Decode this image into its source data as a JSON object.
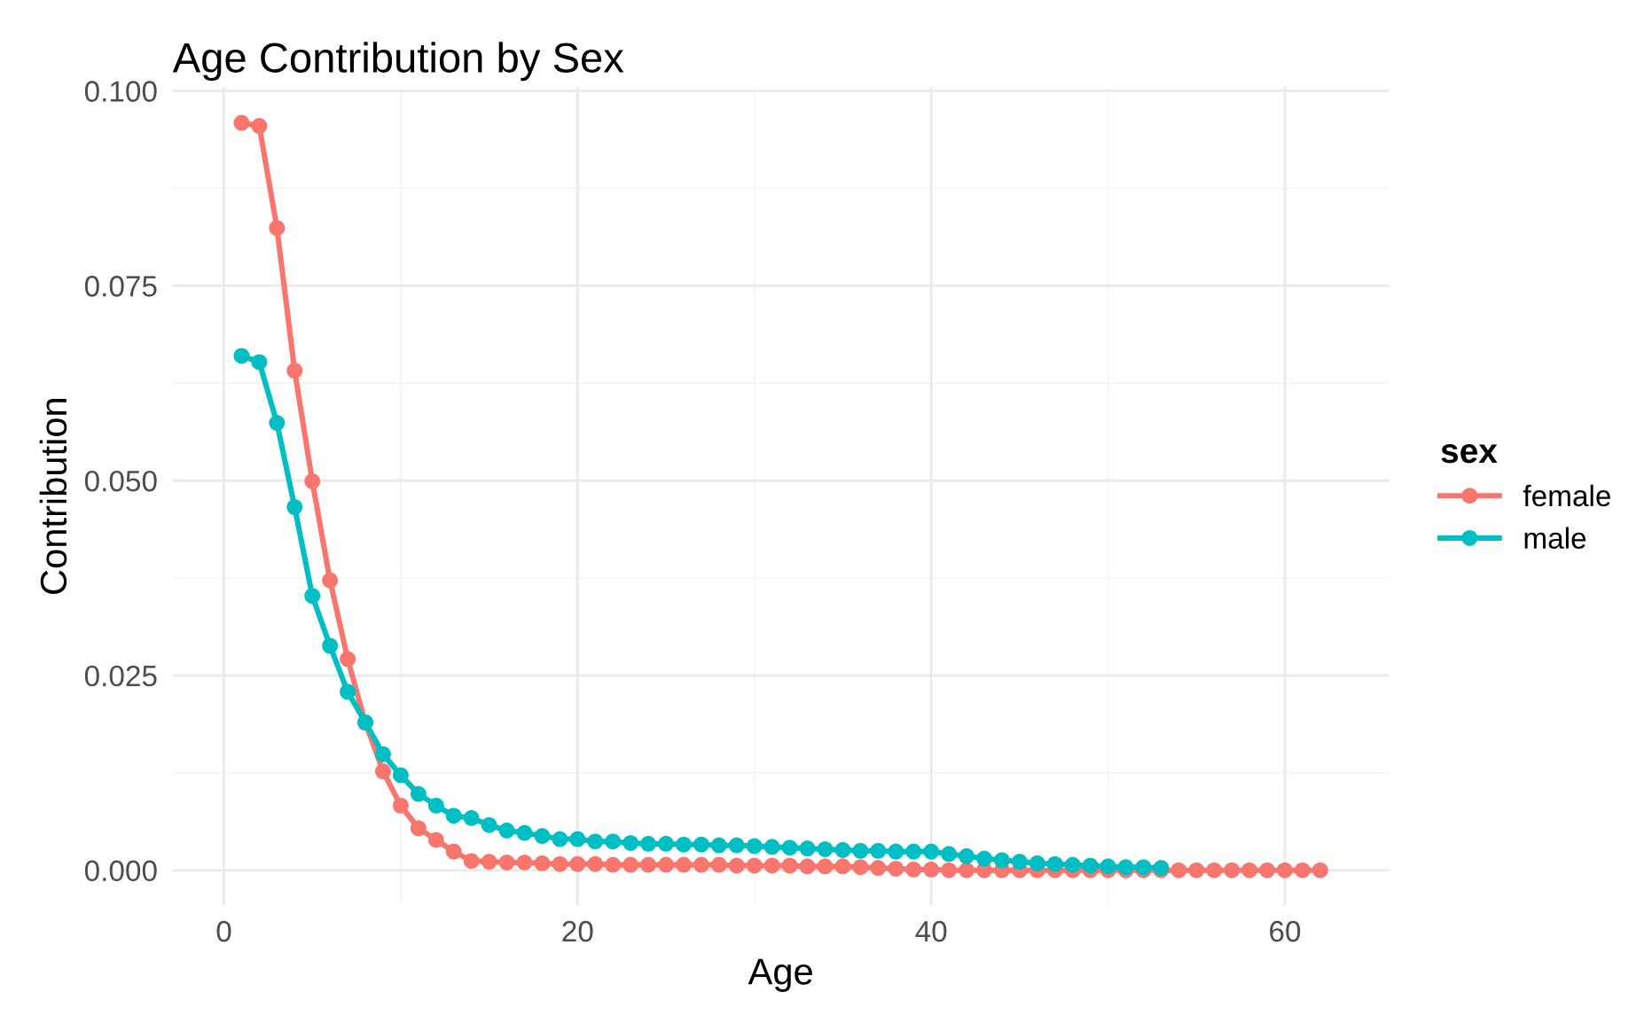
{
  "chart_data": {
    "type": "line",
    "title": "Age Contribution by Sex",
    "xlabel": "Age",
    "ylabel": "Contribution",
    "legend_title": "sex",
    "legend": "right",
    "grid": true,
    "marker": "circle",
    "line_style": "solid",
    "xlim": [
      -2.9,
      65.9
    ],
    "xticks": [
      0,
      20,
      40,
      60
    ],
    "ylim": [
      -0.0045,
      0.1005
    ],
    "yticks": [
      {
        "value": 0,
        "label": "0.000"
      },
      {
        "value": 0.025,
        "label": "0.025"
      },
      {
        "value": 0.05,
        "label": "0.050"
      },
      {
        "value": 0.075,
        "label": "0.075"
      },
      {
        "value": 0.1,
        "label": "0.100"
      }
    ],
    "series": [
      {
        "name": "female",
        "color": "#f8766d",
        "x": [
          1,
          2,
          3,
          4,
          5,
          6,
          7,
          8,
          9,
          10,
          11,
          12,
          13,
          14,
          15,
          16,
          17,
          18,
          19,
          20,
          21,
          22,
          23,
          24,
          25,
          26,
          27,
          28,
          29,
          30,
          31,
          32,
          33,
          34,
          35,
          36,
          37,
          38,
          39,
          40,
          41,
          42,
          43,
          44,
          45,
          46,
          47,
          48,
          49,
          50,
          51,
          52,
          53,
          54,
          55,
          56,
          57,
          58,
          59,
          60,
          61,
          62
        ],
        "values": [
          0.0959,
          0.0955,
          0.0824,
          0.0641,
          0.0499,
          0.0372,
          0.0271,
          0.0189,
          0.0127,
          0.0083,
          0.0054,
          0.0039,
          0.0024,
          0.0012,
          0.0011,
          0.001,
          0.001,
          0.0009,
          0.0008,
          0.0008,
          0.0008,
          0.0007,
          0.0007,
          0.0007,
          0.0007,
          0.0007,
          0.0007,
          0.0007,
          0.0006,
          0.0006,
          0.0006,
          0.0006,
          0.0005,
          0.0005,
          0.0005,
          0.0004,
          0.0003,
          0.0002,
          0.0001,
          0.0001,
          0,
          0,
          0,
          0,
          0,
          0,
          0,
          0,
          0,
          0,
          0,
          0,
          0,
          0,
          0,
          0,
          0,
          0,
          0,
          0,
          0,
          0
        ]
      },
      {
        "name": "male",
        "color": "#00bfc4",
        "x": [
          1,
          2,
          3,
          4,
          5,
          6,
          7,
          8,
          9,
          10,
          11,
          12,
          13,
          14,
          15,
          16,
          17,
          18,
          19,
          20,
          21,
          22,
          23,
          24,
          25,
          26,
          27,
          28,
          29,
          30,
          31,
          32,
          33,
          34,
          35,
          36,
          37,
          38,
          39,
          40,
          41,
          42,
          43,
          44,
          45,
          46,
          47,
          48,
          49,
          50,
          51,
          52,
          53
        ],
        "values": [
          0.066,
          0.0652,
          0.0574,
          0.0466,
          0.0352,
          0.0288,
          0.0229,
          0.019,
          0.0149,
          0.0122,
          0.0098,
          0.0083,
          0.007,
          0.0067,
          0.0058,
          0.0051,
          0.0048,
          0.0044,
          0.004,
          0.004,
          0.0037,
          0.0037,
          0.0035,
          0.0034,
          0.0034,
          0.0033,
          0.0033,
          0.0032,
          0.0032,
          0.0031,
          0.003,
          0.0029,
          0.0028,
          0.0027,
          0.0026,
          0.0025,
          0.0025,
          0.0024,
          0.0024,
          0.0024,
          0.0021,
          0.0018,
          0.0015,
          0.0013,
          0.0011,
          0.0009,
          0.0008,
          0.0007,
          0.0006,
          0.0005,
          0.0004,
          0.0004,
          0.0003
        ]
      }
    ]
  }
}
